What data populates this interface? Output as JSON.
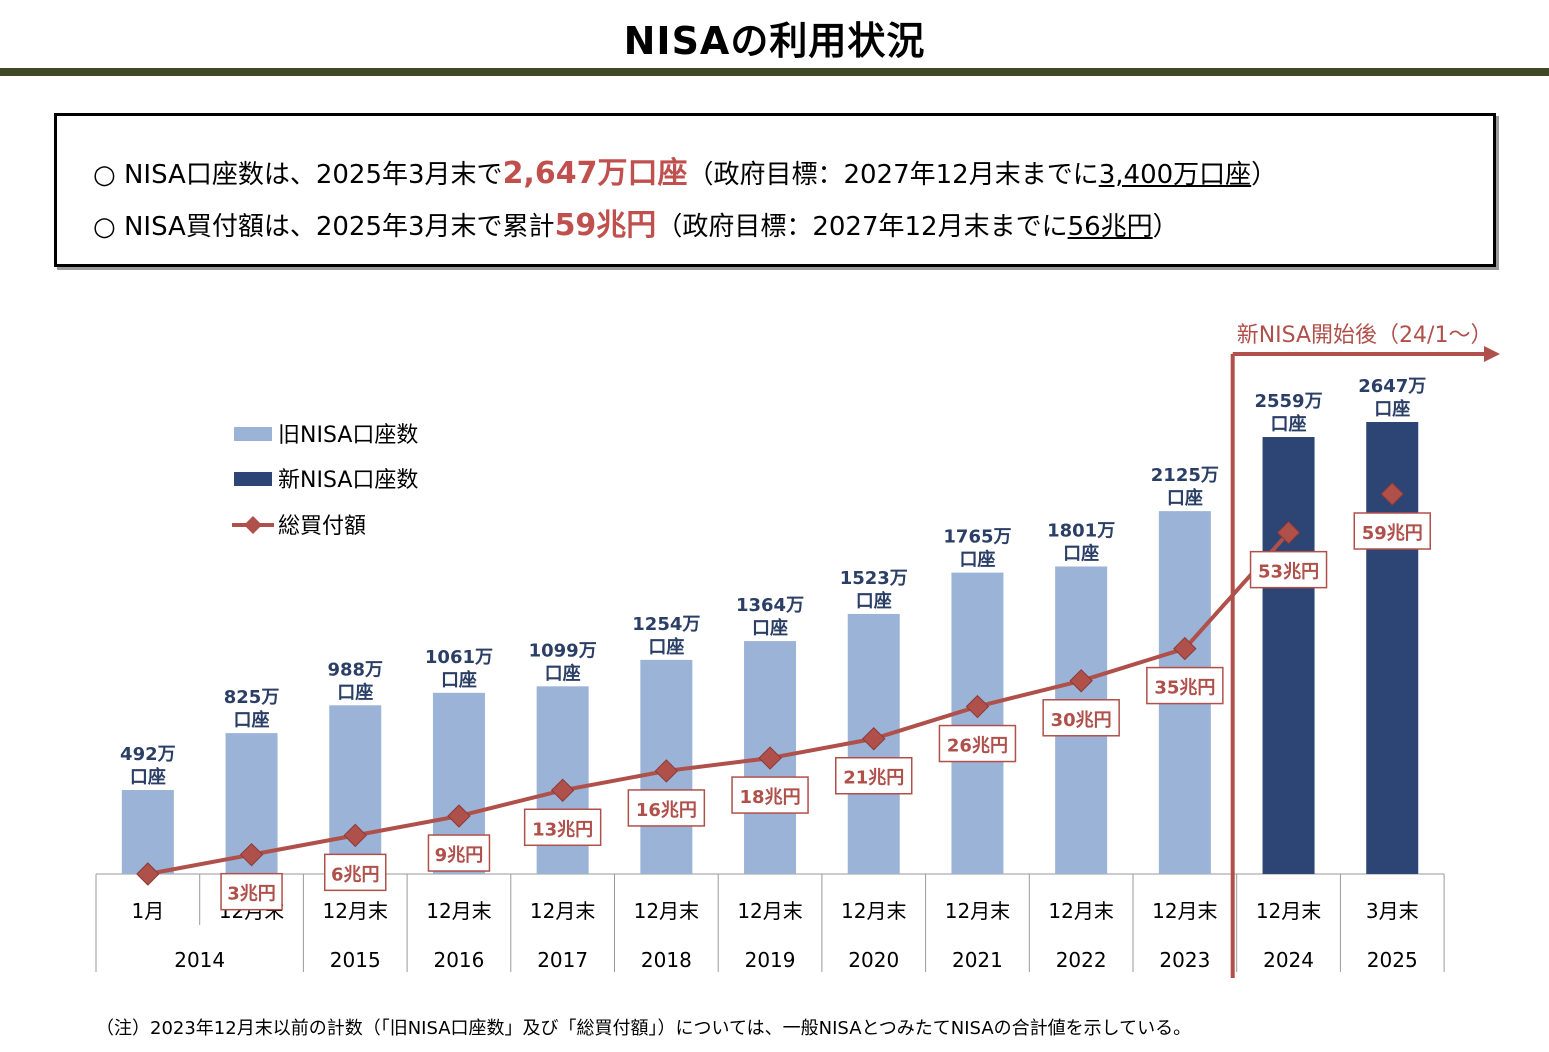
{
  "title": "NISAの利用状況",
  "summary": {
    "line1": {
      "bullet": "○",
      "pre": "NISA口座数は、2025年3月末で",
      "highlight": "2,647万口座",
      "mid": "（政府目標：2027年12月末までに",
      "underline": "3,400万口座",
      "post": "）"
    },
    "line2": {
      "bullet": "○",
      "pre": "NISA買付額は、2025年3月末で累計",
      "highlight": "59兆円",
      "mid": "（政府目標：2027年12月末までに",
      "underline": "56兆円",
      "post": "）"
    }
  },
  "chart_data": {
    "type": "bar",
    "categories": [
      "1月",
      "12月末",
      "12月末",
      "12月末",
      "12月末",
      "12月末",
      "12月末",
      "12月末",
      "12月末",
      "12月末",
      "12月末",
      "12月末",
      "3月末"
    ],
    "years": [
      {
        "label": "2014",
        "span": 2
      },
      {
        "label": "2015",
        "span": 1
      },
      {
        "label": "2016",
        "span": 1
      },
      {
        "label": "2017",
        "span": 1
      },
      {
        "label": "2018",
        "span": 1
      },
      {
        "label": "2019",
        "span": 1
      },
      {
        "label": "2020",
        "span": 1
      },
      {
        "label": "2021",
        "span": 1
      },
      {
        "label": "2022",
        "span": 1
      },
      {
        "label": "2023",
        "span": 1
      },
      {
        "label": "2024",
        "span": 1
      },
      {
        "label": "2025",
        "span": 1
      }
    ],
    "accounts": [
      492,
      825,
      988,
      1061,
      1099,
      1254,
      1364,
      1523,
      1765,
      1801,
      2125,
      2559,
      2647
    ],
    "account_series": [
      "old",
      "old",
      "old",
      "old",
      "old",
      "old",
      "old",
      "old",
      "old",
      "old",
      "old",
      "new",
      "new"
    ],
    "account_labels": [
      [
        "492万",
        "口座"
      ],
      [
        "825万",
        "口座"
      ],
      [
        "988万",
        "口座"
      ],
      [
        "1061万",
        "口座"
      ],
      [
        "1099万",
        "口座"
      ],
      [
        "1254万",
        "口座"
      ],
      [
        "1364万",
        "口座"
      ],
      [
        "1523万",
        "口座"
      ],
      [
        "1765万",
        "口座"
      ],
      [
        "1801万",
        "口座"
      ],
      [
        "2125万",
        "口座"
      ],
      [
        "2559万",
        "口座"
      ],
      [
        "2647万",
        "口座"
      ]
    ],
    "purchase": [
      0,
      3,
      6,
      9,
      13,
      16,
      18,
      21,
      26,
      30,
      35,
      53,
      59
    ],
    "purchase_labels": [
      null,
      "3兆円",
      "6兆円",
      "9兆円",
      "13兆円",
      "16兆円",
      "18兆円",
      "21兆円",
      "26兆円",
      "30兆円",
      "35兆円",
      "53兆円",
      "59兆円"
    ],
    "purchase_connected": [
      true,
      true,
      true,
      true,
      true,
      true,
      true,
      true,
      true,
      true,
      true,
      true,
      false
    ],
    "legend": {
      "old": "旧NISA口座数",
      "new": "新NISA口座数",
      "line": "総買付額"
    },
    "annotation": "新NISA開始後（24/1～）",
    "colors": {
      "old": "#9bb3d6",
      "new": "#2c4574",
      "line": "#b0504b",
      "account_label": "#2b3f66",
      "purchase_label": "#b0504b",
      "annotation": "#b0504b"
    }
  },
  "footnote": "（注）2023年12月末以前の計数（「旧NISA口座数」及び「総買付額」）については、一般NISAとつみたてNISAの合計値を示している。"
}
